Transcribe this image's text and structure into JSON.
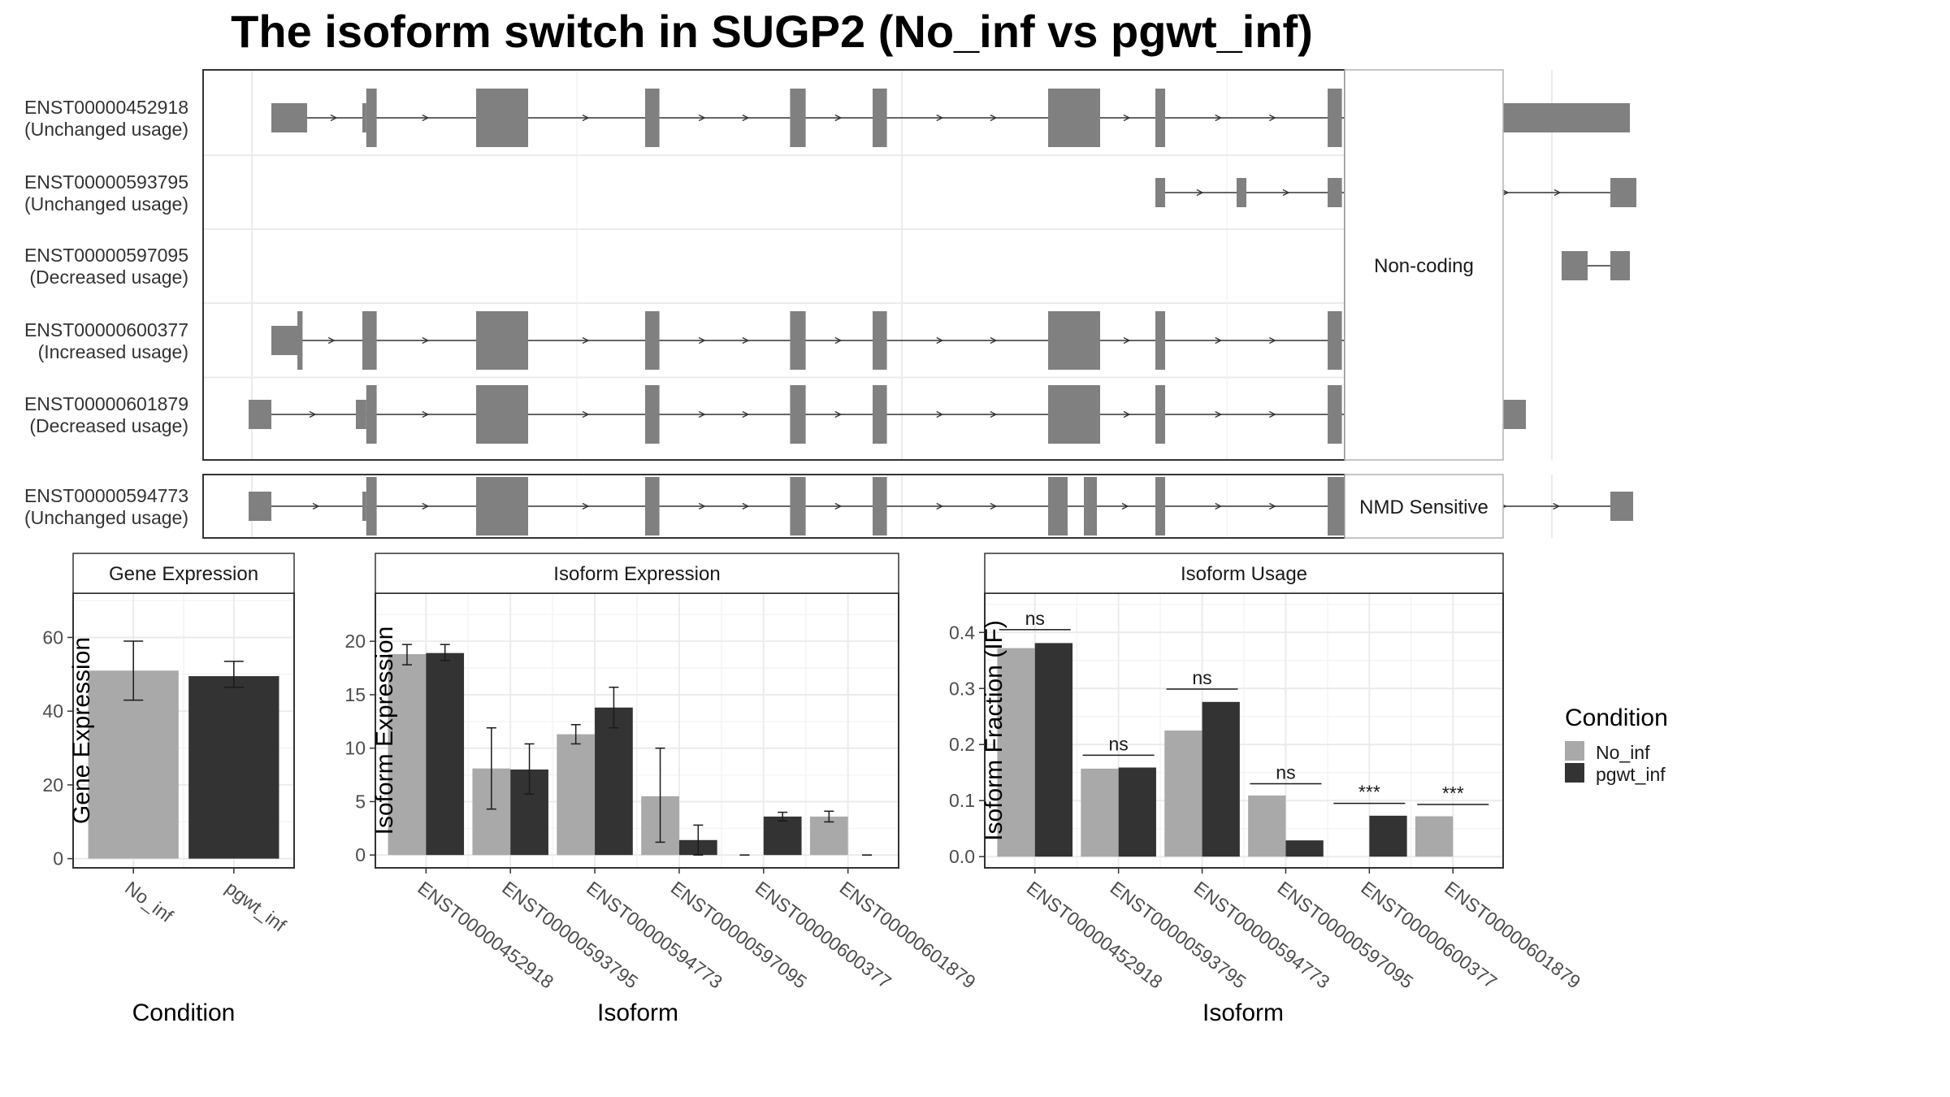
{
  "title": "The isoform switch in SUGP2 (No_inf vs pgwt_inf)",
  "colors": {
    "no_inf": "#a9a9a9",
    "pgwt_inf": "#333333",
    "exon": "#808080",
    "grid": "#ebebeb",
    "panel_border": "#333333",
    "strip_fill": "#ffffff"
  },
  "structure": {
    "groups": [
      {
        "label": "Non-coding",
        "transcripts": [
          {
            "id": "ENST00000452918",
            "usage": "(Unchanged usage)",
            "exons": [
              [
                0.03,
                0.085,
                "u"
              ],
              [
                0.17,
                0.176,
                "u"
              ],
              [
                0.176,
                0.192,
                "c"
              ],
              [
                0.345,
                0.425,
                "c"
              ],
              [
                0.605,
                0.627,
                "c"
              ],
              [
                0.828,
                0.852,
                "c"
              ],
              [
                0.955,
                0.977,
                "c"
              ],
              [
                1.225,
                1.305,
                "c"
              ],
              [
                1.39,
                1.405,
                "c"
              ],
              [
                1.655,
                1.677,
                "c"
              ],
              [
                1.75,
                1.772,
                "c"
              ],
              [
                1.825,
                2.12,
                "u"
              ]
            ]
          },
          {
            "id": "ENST00000593795",
            "usage": "(Unchanged usage)",
            "exons": [
              [
                1.39,
                1.405,
                "u"
              ],
              [
                1.515,
                1.53,
                "u"
              ],
              [
                1.655,
                1.677,
                "u"
              ],
              [
                1.75,
                1.772,
                "u"
              ],
              [
                1.825,
                1.85,
                "u"
              ],
              [
                2.09,
                2.13,
                "u"
              ]
            ]
          },
          {
            "id": "ENST00000597095",
            "usage": "(Decreased usage)",
            "exons": [
              [
                2.015,
                2.055,
                "u"
              ],
              [
                2.09,
                2.12,
                "u"
              ]
            ]
          },
          {
            "id": "ENST00000600377",
            "usage": "(Increased usage)",
            "exons": [
              [
                0.03,
                0.07,
                "u"
              ],
              [
                0.07,
                0.078,
                "c"
              ],
              [
                0.17,
                0.192,
                "c"
              ],
              [
                0.345,
                0.425,
                "c"
              ],
              [
                0.605,
                0.627,
                "c"
              ],
              [
                0.828,
                0.852,
                "c"
              ],
              [
                0.955,
                0.977,
                "c"
              ],
              [
                1.225,
                1.305,
                "c"
              ],
              [
                1.39,
                1.405,
                "c"
              ],
              [
                1.655,
                1.677,
                "c"
              ],
              [
                1.75,
                1.772,
                "c"
              ],
              [
                1.772,
                1.91,
                "u"
              ]
            ]
          },
          {
            "id": "ENST00000601879",
            "usage": "(Decreased usage)",
            "exons": [
              [
                -0.005,
                0.03,
                "u"
              ],
              [
                0.16,
                0.176,
                "u"
              ],
              [
                0.176,
                0.192,
                "c"
              ],
              [
                0.345,
                0.425,
                "c"
              ],
              [
                0.605,
                0.627,
                "c"
              ],
              [
                0.828,
                0.852,
                "c"
              ],
              [
                0.955,
                0.977,
                "c"
              ],
              [
                1.225,
                1.305,
                "c"
              ],
              [
                1.39,
                1.405,
                "c"
              ],
              [
                1.655,
                1.677,
                "c"
              ],
              [
                1.75,
                1.772,
                "c"
              ],
              [
                1.772,
                1.96,
                "u"
              ]
            ]
          }
        ]
      },
      {
        "label": "NMD Sensitive",
        "transcripts": [
          {
            "id": "ENST00000594773",
            "usage": "(Unchanged usage)",
            "exons": [
              [
                -0.005,
                0.03,
                "u"
              ],
              [
                0.17,
                0.176,
                "u"
              ],
              [
                0.176,
                0.192,
                "c"
              ],
              [
                0.345,
                0.425,
                "c"
              ],
              [
                0.605,
                0.627,
                "c"
              ],
              [
                0.828,
                0.852,
                "c"
              ],
              [
                0.955,
                0.977,
                "c"
              ],
              [
                1.225,
                1.255,
                "c"
              ],
              [
                1.28,
                1.3,
                "c"
              ],
              [
                1.39,
                1.405,
                "c"
              ],
              [
                1.655,
                1.7,
                "c"
              ],
              [
                1.7,
                1.765,
                "u"
              ],
              [
                1.825,
                1.845,
                "u"
              ],
              [
                2.09,
                2.125,
                "u"
              ]
            ]
          }
        ]
      }
    ]
  },
  "chart_data": [
    {
      "type": "bar",
      "title": "Gene Expression",
      "xlabel": "Condition",
      "ylabel": "Gene Expression",
      "categories": [
        "No_inf",
        "pgwt_inf"
      ],
      "values": [
        51.0,
        49.5
      ],
      "errors": [
        [
          43.0,
          59.0
        ],
        [
          46.5,
          53.5
        ]
      ],
      "ylim": [
        -2.5,
        72
      ],
      "yticks": [
        "0",
        "20",
        "40",
        "60"
      ],
      "grid": true
    },
    {
      "type": "bar",
      "title": "Isoform Expression",
      "xlabel": "Isoform",
      "ylabel": "Isoform Expression",
      "categories": [
        "ENST00000452918",
        "ENST00000593795",
        "ENST00000594773",
        "ENST00000597095",
        "ENST00000600377",
        "ENST00000601879"
      ],
      "series": [
        {
          "name": "No_inf",
          "values": [
            18.8,
            8.1,
            11.3,
            5.5,
            0.0,
            3.6
          ],
          "errors": [
            [
              17.8,
              19.7
            ],
            [
              4.3,
              11.9
            ],
            [
              10.4,
              12.2
            ],
            [
              1.2,
              10.0
            ],
            [
              0.0,
              0.0
            ],
            [
              3.1,
              4.1
            ]
          ]
        },
        {
          "name": "pgwt_inf",
          "values": [
            18.9,
            8.0,
            13.8,
            1.4,
            3.6,
            0.0
          ],
          "errors": [
            [
              18.2,
              19.7
            ],
            [
              5.7,
              10.4
            ],
            [
              11.9,
              15.7
            ],
            [
              0.0,
              2.8
            ],
            [
              3.2,
              4.0
            ],
            [
              0.0,
              0.0
            ]
          ]
        }
      ],
      "ylim": [
        -1.2,
        24.5
      ],
      "yticks": [
        "0",
        "5",
        "10",
        "15",
        "20"
      ],
      "grid": true
    },
    {
      "type": "bar",
      "title": "Isoform Usage",
      "xlabel": "Isoform",
      "ylabel": "Isoform Fraction (IF)",
      "categories": [
        "ENST00000452918",
        "ENST00000593795",
        "ENST00000594773",
        "ENST00000597095",
        "ENST00000600377",
        "ENST00000601879"
      ],
      "series": [
        {
          "name": "No_inf",
          "values": [
            0.372,
            0.157,
            0.225,
            0.109,
            0.0,
            0.072
          ]
        },
        {
          "name": "pgwt_inf",
          "values": [
            0.381,
            0.159,
            0.276,
            0.029,
            0.073,
            0.0
          ]
        }
      ],
      "significance": [
        {
          "label": "ns",
          "y": 0.405
        },
        {
          "label": "ns",
          "y": 0.181
        },
        {
          "label": "ns",
          "y": 0.299
        },
        {
          "label": "ns",
          "y": 0.13
        },
        {
          "label": "***",
          "y": 0.095
        },
        {
          "label": "***",
          "y": 0.093
        }
      ],
      "ylim": [
        -0.02,
        0.47
      ],
      "yticks": [
        "0.0",
        "0.1",
        "0.2",
        "0.3",
        "0.4"
      ],
      "grid": true
    }
  ],
  "legend": {
    "title": "Condition",
    "items": [
      {
        "label": "No_inf",
        "color": "#a9a9a9"
      },
      {
        "label": "pgwt_inf",
        "color": "#333333"
      }
    ]
  }
}
